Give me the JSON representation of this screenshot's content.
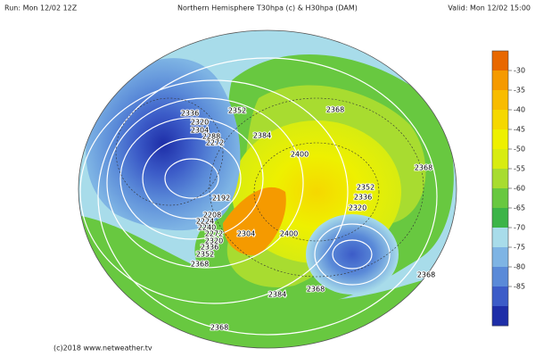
{
  "header": {
    "run": "Run: Mon 12/02 12Z",
    "title": "Northern Hemisphere T30hpa (c) & H30hpa (DAM)",
    "valid": "Valid: Mon 12/02 15:00"
  },
  "colorbar": {
    "colors": [
      "#e86800",
      "#f59a00",
      "#f8bc00",
      "#f5d800",
      "#eef000",
      "#d8ec10",
      "#a8dc30",
      "#68c840",
      "#3cb448",
      "#a8dcea",
      "#7eb4e4",
      "#5a8ad8",
      "#3c5cc8",
      "#1e2ea8"
    ],
    "ticks": [
      -30,
      -35,
      -40,
      -45,
      -50,
      -55,
      -60,
      -65,
      -70,
      -75,
      -80,
      -85
    ]
  },
  "contour_labels": [
    2336,
    2352,
    2320,
    2304,
    2288,
    2272,
    2384,
    2368,
    2400,
    2368,
    2352,
    2336,
    2320,
    2192,
    2208,
    2224,
    2240,
    2272,
    2304,
    2320,
    2336,
    2352,
    2400,
    2368,
    2384,
    2368,
    2368,
    2368
  ],
  "footer": "(c)2018 www.netweather.tv"
}
